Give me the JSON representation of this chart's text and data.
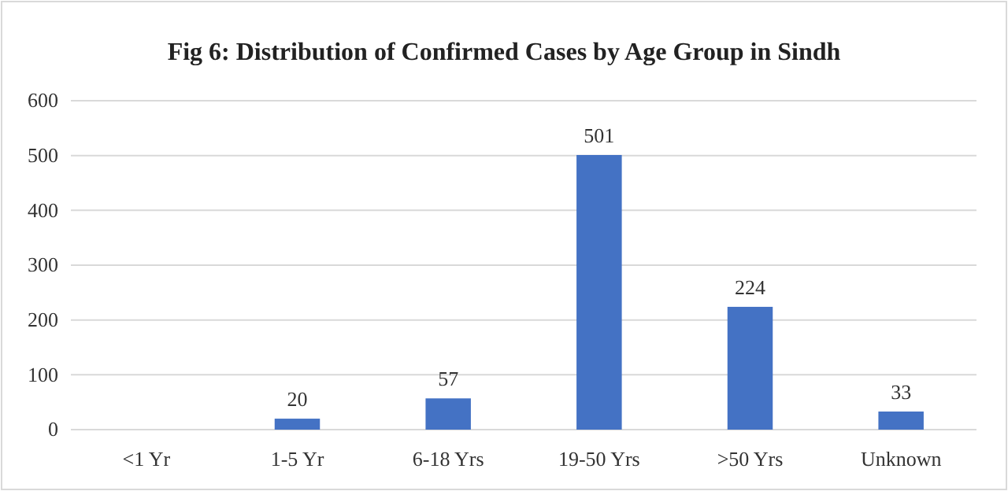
{
  "chart_data": {
    "type": "bar",
    "title": "Fig 6: Distribution of Confirmed Cases by Age Group in Sindh",
    "categories": [
      "<1 Yr",
      "1-5 Yr",
      "6-18 Yrs",
      "19-50 Yrs",
      ">50 Yrs",
      "Unknown"
    ],
    "values": [
      0,
      20,
      57,
      501,
      224,
      33
    ],
    "value_labels": [
      null,
      "20",
      "57",
      "501",
      "224",
      "33"
    ],
    "color": "#4472c4",
    "ylim": [
      0,
      600
    ],
    "yticks": [
      0,
      100,
      200,
      300,
      400,
      500,
      600
    ],
    "grid": "y"
  }
}
